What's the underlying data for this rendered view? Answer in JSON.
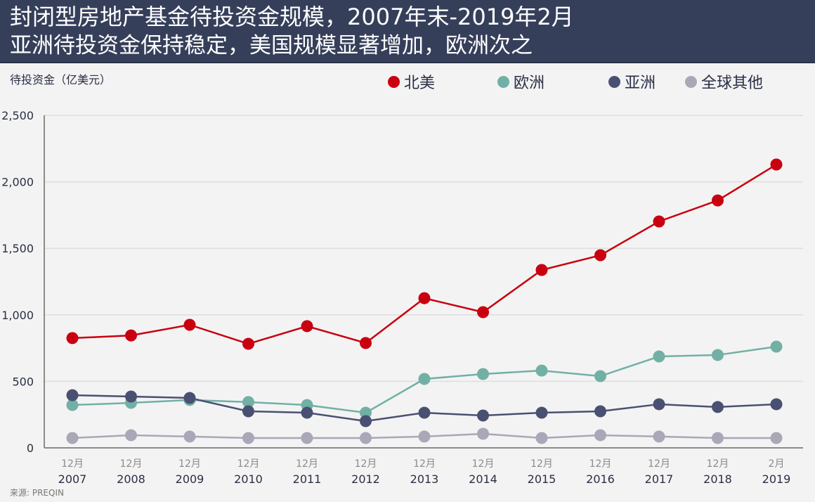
{
  "header": {
    "title": "封闭型房地产基金待投资金规模，2007年末-2019年2月",
    "subtitle": "亚洲待投资金保持稳定，美国规模显著增加，欧洲次之"
  },
  "source": "来源: PREQIN",
  "chart_data": {
    "type": "line",
    "title": "封闭型房地产基金待投资金规模，2007年末-2019年2月",
    "subtitle": "亚洲待投资金保持稳定，美国规模显著增加，欧洲次之",
    "xlabel": "",
    "ylabel": "待投资金（亿美元）",
    "ylim": [
      0,
      2500
    ],
    "yticks": [
      0,
      500,
      1000,
      1500,
      2000,
      2500
    ],
    "ytick_labels": [
      "0",
      "500",
      "1,000",
      "1,500",
      "2,000",
      "2,500"
    ],
    "grid": true,
    "legend_position": "top-right",
    "categories": [
      {
        "month": "12月",
        "year": "2007"
      },
      {
        "month": "12月",
        "year": "2008"
      },
      {
        "month": "12月",
        "year": "2009"
      },
      {
        "month": "12月",
        "year": "2010"
      },
      {
        "month": "12月",
        "year": "2011"
      },
      {
        "month": "12月",
        "year": "2012"
      },
      {
        "month": "12月",
        "year": "2013"
      },
      {
        "month": "12月",
        "year": "2014"
      },
      {
        "month": "12月",
        "year": "2015"
      },
      {
        "month": "12月",
        "year": "2016"
      },
      {
        "month": "12月",
        "year": "2017"
      },
      {
        "month": "12月",
        "year": "2018"
      },
      {
        "month": "2月",
        "year": "2019"
      }
    ],
    "series": [
      {
        "name": "北美",
        "color": "#c8000f",
        "values": [
          825,
          845,
          925,
          782,
          915,
          788,
          1125,
          1020,
          1337,
          1448,
          1702,
          1860,
          2130
        ]
      },
      {
        "name": "欧洲",
        "color": "#72b0a5",
        "values": [
          322,
          338,
          360,
          344,
          322,
          264,
          518,
          555,
          581,
          539,
          687,
          698,
          761
        ]
      },
      {
        "name": "亚洲",
        "color": "#4a5072",
        "values": [
          396,
          386,
          375,
          275,
          264,
          201,
          264,
          243,
          264,
          275,
          328,
          307,
          328
        ]
      },
      {
        "name": "全球其他",
        "color": "#a8a8b8",
        "values": [
          74,
          95,
          85,
          74,
          74,
          74,
          85,
          106,
          74,
          95,
          85,
          74,
          74
        ]
      }
    ]
  }
}
